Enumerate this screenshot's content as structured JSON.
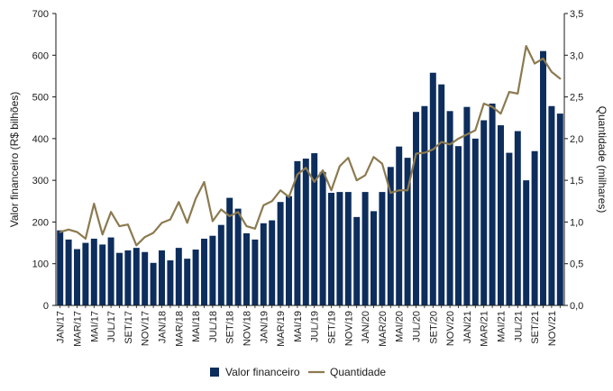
{
  "chart_data": {
    "type": "bar",
    "categories": [
      "JAN/17",
      "FEV/17",
      "MAR/17",
      "ABR/17",
      "MAI/17",
      "JUN/17",
      "JUL/17",
      "AGO/17",
      "SET/17",
      "OUT/17",
      "NOV/17",
      "DEZ/17",
      "JAN/18",
      "FEV/18",
      "MAR/18",
      "ABR/18",
      "MAI/18",
      "JUN/18",
      "JUL/18",
      "AGO/18",
      "SET/18",
      "OUT/18",
      "NOV/18",
      "DEZ/18",
      "JAN/19",
      "FEV/19",
      "MAR/19",
      "ABR/19",
      "MAI/19",
      "JUN/19",
      "JUL/19",
      "AGO/19",
      "SET/19",
      "OUT/19",
      "NOV/19",
      "DEZ/19",
      "JAN/20",
      "FEV/20",
      "MAR/20",
      "ABR/20",
      "MAI/20",
      "JUN/20",
      "JUL/20",
      "AGO/20",
      "SET/20",
      "OUT/20",
      "NOV/20",
      "DEZ/20",
      "JAN/21",
      "FEV/21",
      "MAR/21",
      "ABR/21",
      "MAI/21",
      "JUN/21",
      "JUL/21",
      "AGO/21",
      "SET/21",
      "OUT/21",
      "NOV/21",
      "DEZ/21"
    ],
    "x_tick_labels": [
      "JAN/17",
      "MAR/17",
      "MAI/17",
      "JUL/17",
      "SET/17",
      "NOV/17",
      "JAN/18",
      "MAR/18",
      "MAI/18",
      "JUL/18",
      "SET/18",
      "NOV/18",
      "JAN/19",
      "MAR/19",
      "MAI/19",
      "JUL/19",
      "SET/19",
      "NOV/19",
      "JAN/20",
      "MAR/20",
      "MAI/20",
      "JUL/20",
      "SET/20",
      "NOV/20",
      "JAN/21",
      "MAR/21",
      "MAI/21",
      "JUL/21",
      "SET/21",
      "NOV/21"
    ],
    "series": [
      {
        "name": "Valor financeiro",
        "type": "bar",
        "axis": "left",
        "color": "#0d2d5c",
        "values": [
          180,
          158,
          135,
          150,
          160,
          146,
          163,
          126,
          132,
          138,
          128,
          102,
          132,
          108,
          138,
          112,
          134,
          160,
          167,
          193,
          258,
          232,
          173,
          158,
          197,
          204,
          248,
          262,
          346,
          352,
          365,
          320,
          270,
          272,
          272,
          212,
          272,
          226,
          272,
          332,
          381,
          354,
          464,
          478,
          558,
          530,
          466,
          382,
          476,
          400,
          444,
          484,
          432,
          366,
          418,
          300,
          370,
          610,
          478,
          460
        ]
      },
      {
        "name": "Quantidade",
        "type": "line",
        "axis": "right",
        "color": "#8c7a50",
        "values": [
          0.88,
          0.91,
          0.88,
          0.8,
          1.22,
          0.85,
          1.12,
          0.95,
          0.97,
          0.72,
          0.82,
          0.87,
          0.99,
          1.03,
          1.24,
          0.99,
          1.28,
          1.48,
          1.01,
          1.15,
          1.07,
          1.12,
          0.95,
          0.92,
          1.2,
          1.25,
          1.38,
          1.3,
          1.57,
          1.65,
          1.48,
          1.62,
          1.38,
          1.67,
          1.77,
          1.5,
          1.56,
          1.78,
          1.7,
          1.35,
          1.38,
          1.38,
          1.82,
          1.83,
          1.87,
          1.96,
          1.93,
          2.0,
          2.05,
          2.1,
          2.42,
          2.38,
          2.3,
          2.56,
          2.54,
          3.11,
          2.9,
          2.96,
          2.8,
          2.72
        ]
      }
    ],
    "y_left": {
      "label": "Valor financeiro (R$ bilhões)",
      "ylim": [
        0,
        700
      ],
      "ticks": [
        "0",
        "100",
        "200",
        "300",
        "400",
        "500",
        "600",
        "700"
      ]
    },
    "y_right": {
      "label": "Quantidade (milhares)",
      "ylim": [
        0,
        3.5
      ],
      "ticks": [
        "0,0",
        "0,5",
        "1,0",
        "1,5",
        "2,0",
        "2,5",
        "3,0",
        "3,5"
      ]
    },
    "legend": {
      "placement": "bottom-center",
      "entries": [
        "Valor financeiro",
        "Quantidade"
      ]
    },
    "grid": false
  }
}
